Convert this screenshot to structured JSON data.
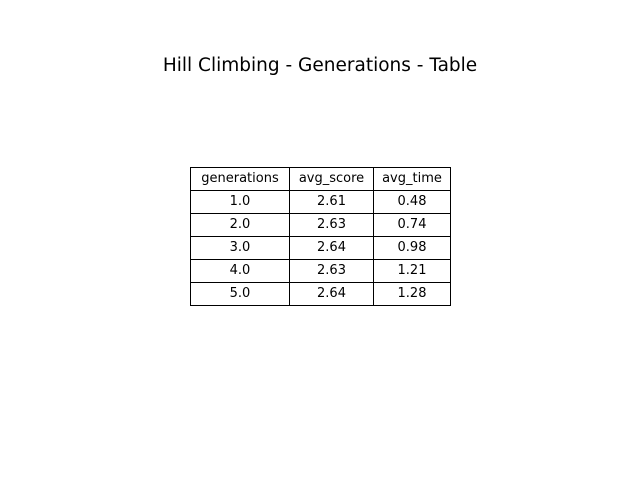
{
  "chart_data": {
    "type": "table",
    "title": "Hill Climbing - Generations - Table",
    "columns": [
      "generations",
      "avg_score",
      "avg_time"
    ],
    "rows": [
      [
        "1.0",
        "2.61",
        "0.48"
      ],
      [
        "2.0",
        "2.63",
        "0.74"
      ],
      [
        "3.0",
        "2.64",
        "0.98"
      ],
      [
        "4.0",
        "2.63",
        "1.21"
      ],
      [
        "5.0",
        "2.64",
        "1.28"
      ]
    ]
  }
}
